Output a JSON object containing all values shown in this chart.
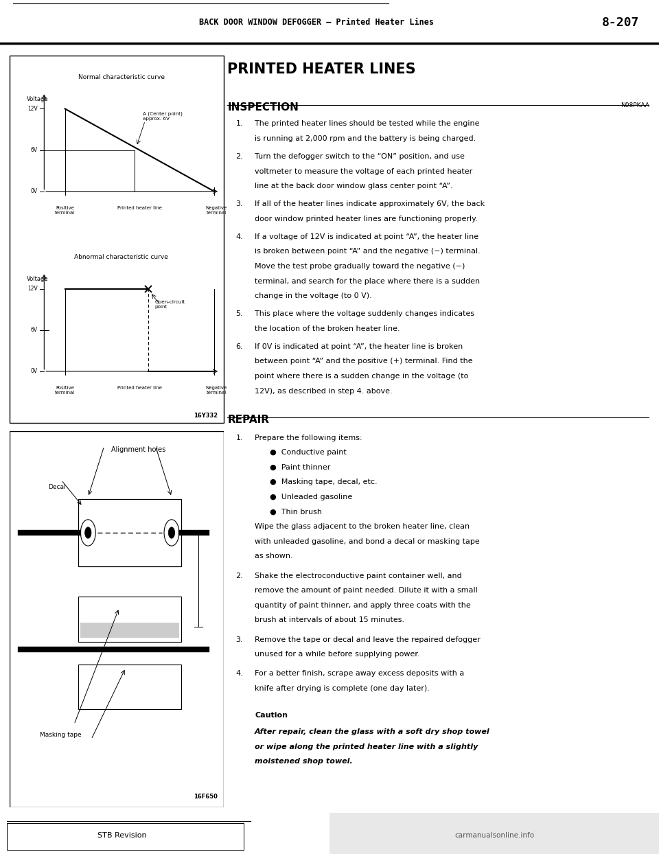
{
  "page_title": "BACK DOOR WINDOW DEFOGGER – Printed Heater Lines",
  "page_number": "8-207",
  "section_title": "PRINTED HEATER LINES",
  "subsection_inspection": "INSPECTION",
  "inspection_label_right": "N08PKAA",
  "inspection_items": [
    [
      "The printed heater lines should be tested while the engine",
      "is running at 2,000 rpm and the battery is being charged."
    ],
    [
      "Turn the defogger switch to the “ON” position, and use",
      "voltmeter to measure the voltage of each printed heater",
      "line at the back door window glass center point “A”."
    ],
    [
      "If all of the heater lines indicate approximately 6V, the back",
      "door window printed heater lines are functioning properly."
    ],
    [
      "If a voltage of 12V is indicated at point “A”, the heater line",
      "is broken between point “A” and the negative (−) terminal.",
      "Move the test probe gradually toward the negative (−)",
      "terminal, and search for the place where there is a sudden",
      "change in the voltage (to 0 V)."
    ],
    [
      "This place where the voltage suddenly changes indicates",
      "the location of the broken heater line."
    ],
    [
      "If 0V is indicated at point “A”, the heater line is broken",
      "between point “A” and the positive (+) terminal. Find the",
      "point where there is a sudden change in the voltage (to",
      "12V), as described in step 4. above."
    ]
  ],
  "repair_title": "REPAIR",
  "repair_items_raw": [
    [
      "Prepare the following items:"
    ],
    [
      "Shake the electroconductive paint container well, and",
      "remove the amount of paint needed. Dilute it with a small",
      "quantity of paint thinner, and apply three coats with the",
      "brush at intervals of about 15 minutes."
    ],
    [
      "Remove the tape or decal and leave the repaired defogger",
      "unused for a while before supplying power."
    ],
    [
      "For a better finish, scrape away excess deposits with a",
      "knife after drying is complete (one day later)."
    ]
  ],
  "repair_item1_bullets": [
    "Conductive paint",
    "Paint thinner",
    "Masking tape, decal, etc.",
    "Unleaded gasoline",
    "Thin brush"
  ],
  "repair_item1_after": [
    "Wipe the glass adjacent to the broken heater line, clean",
    "with unleaded gasoline, and bond a decal or masking tape",
    "as shown."
  ],
  "caution_title": "Caution",
  "caution_lines": [
    "After repair, clean the glass with a soft dry shop towel",
    "or wipe along the printed heater line with a slightly",
    "moistened shop towel."
  ],
  "fig1_title": "Normal characteristic curve",
  "fig1_ylabel": "Voltage",
  "fig1_annotation": "A (Center point)\napprox. 6V",
  "fig2_title": "Abnormal characteristic curve",
  "fig2_ylabel": "Voltage",
  "fig2_annotation": "Open-circuit\npoint",
  "fig12_code": "16Y332",
  "fig3_title": "Alignment holes",
  "fig3_label_decal": "Decal",
  "fig3_label_masking": "Masking tape",
  "fig3_code": "16F650",
  "bg_color": "#ffffff"
}
